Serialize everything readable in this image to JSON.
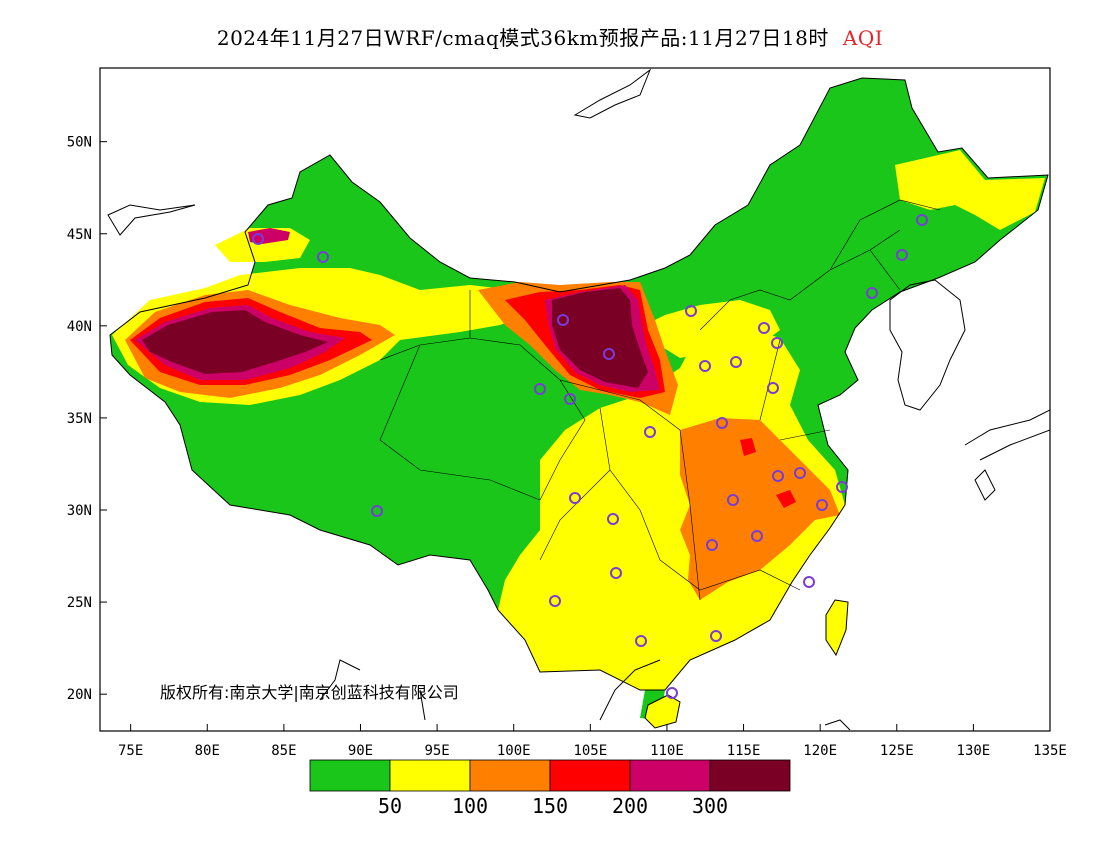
{
  "title": {
    "text": "2024年11月27日WRF/cmaq模式36km预报产品:11月27日18时",
    "variable": "AQI"
  },
  "map": {
    "lon_range": [
      73,
      135
    ],
    "lat_range": [
      18,
      54
    ],
    "x_ticks": [
      "75E",
      "80E",
      "85E",
      "90E",
      "95E",
      "100E",
      "105E",
      "110E",
      "115E",
      "120E",
      "125E",
      "130E",
      "135E"
    ],
    "y_ticks": [
      "20N",
      "25N",
      "30N",
      "35N",
      "40N",
      "45N",
      "50N"
    ]
  },
  "legend": {
    "colors": [
      "#19c619",
      "#ffff00",
      "#ff7f00",
      "#ff0000",
      "#cc0066",
      "#7a0026"
    ],
    "labels": [
      "50",
      "100",
      "150",
      "200",
      "300"
    ]
  },
  "copyright": "版权所有:南京大学|南京创蓝科技有限公司",
  "colors": {
    "good": "#19c619",
    "moderate": "#ffff00",
    "sensitive": "#ff7f00",
    "unhealthy": "#ff0000",
    "very_unhealthy": "#cc0066",
    "hazardous": "#7a0026",
    "station_marker": "#7a3cd8",
    "frame": "#000000"
  }
}
